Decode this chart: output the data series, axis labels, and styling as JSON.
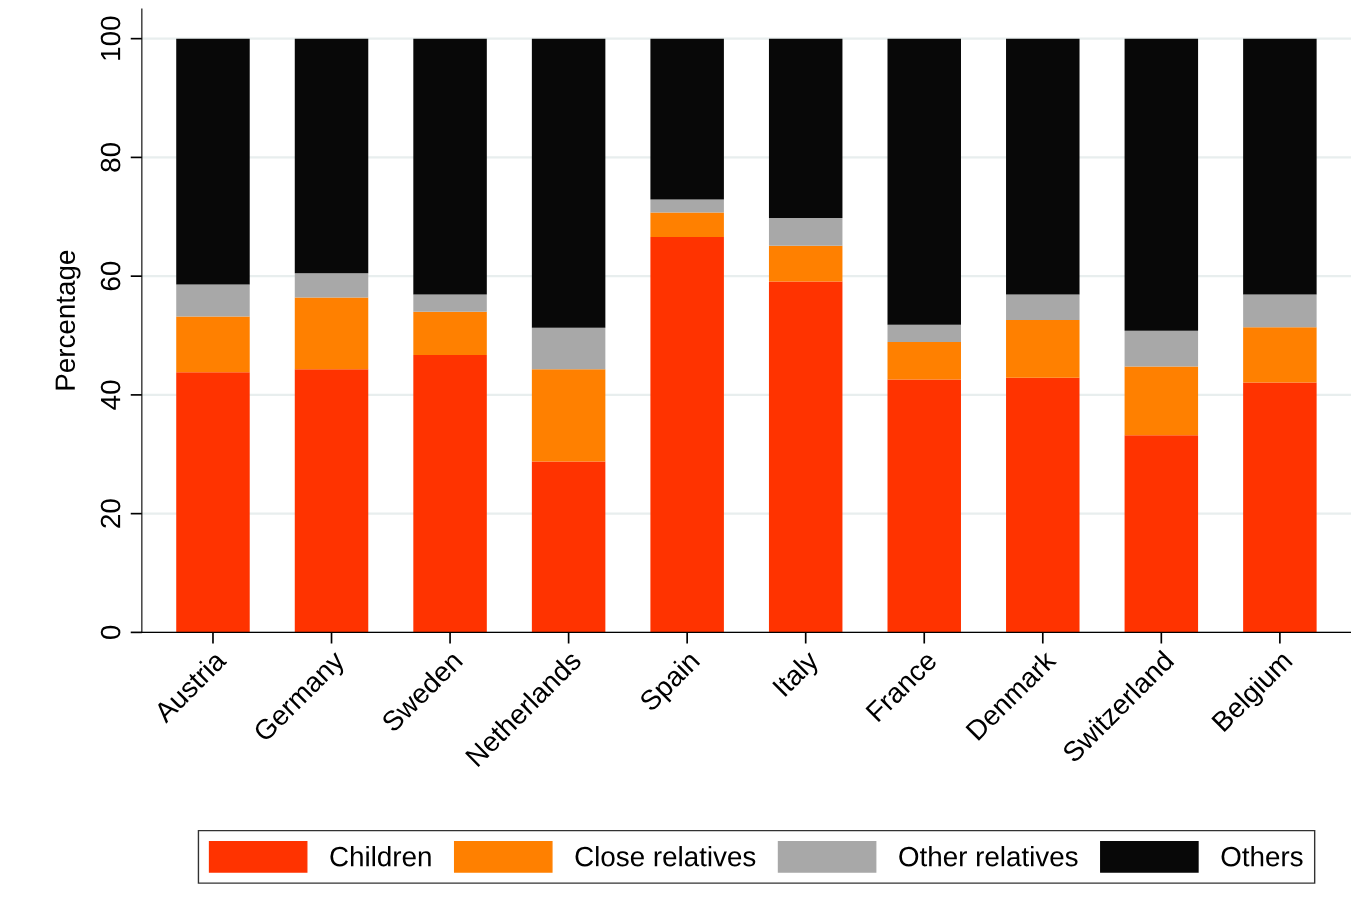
{
  "chart_data": {
    "type": "bar",
    "stacked": true,
    "ylabel": "Percentage",
    "categories": [
      "Austria",
      "Germany",
      "Sweden",
      "Netherlands",
      "Spain",
      "Italy",
      "France",
      "Denmark",
      "Switzerland",
      "Belgium"
    ],
    "series": [
      {
        "name": "Children",
        "color": "#ff3300",
        "values": [
          43.8,
          44.3,
          46.7,
          28.8,
          66.6,
          59.1,
          42.6,
          42.9,
          33.2,
          42.1
        ]
      },
      {
        "name": "Close relatives",
        "color": "#ff8000",
        "values": [
          9.4,
          12.1,
          7.3,
          15.5,
          4.1,
          6.0,
          6.3,
          9.7,
          11.6,
          9.3
        ]
      },
      {
        "name": "Other relatives",
        "color": "#a8a8a8",
        "values": [
          5.4,
          4.1,
          2.9,
          7.0,
          2.2,
          4.7,
          2.9,
          4.3,
          6.0,
          5.5
        ]
      },
      {
        "name": "Others",
        "color": "#080808",
        "values": [
          41.4,
          39.5,
          43.1,
          48.7,
          27.1,
          30.2,
          48.2,
          43.1,
          49.2,
          43.1
        ]
      }
    ],
    "ylim": [
      0,
      105
    ],
    "yticks": [
      0,
      20,
      40,
      60,
      80,
      100
    ],
    "grid": "y",
    "legend": "bottom"
  }
}
